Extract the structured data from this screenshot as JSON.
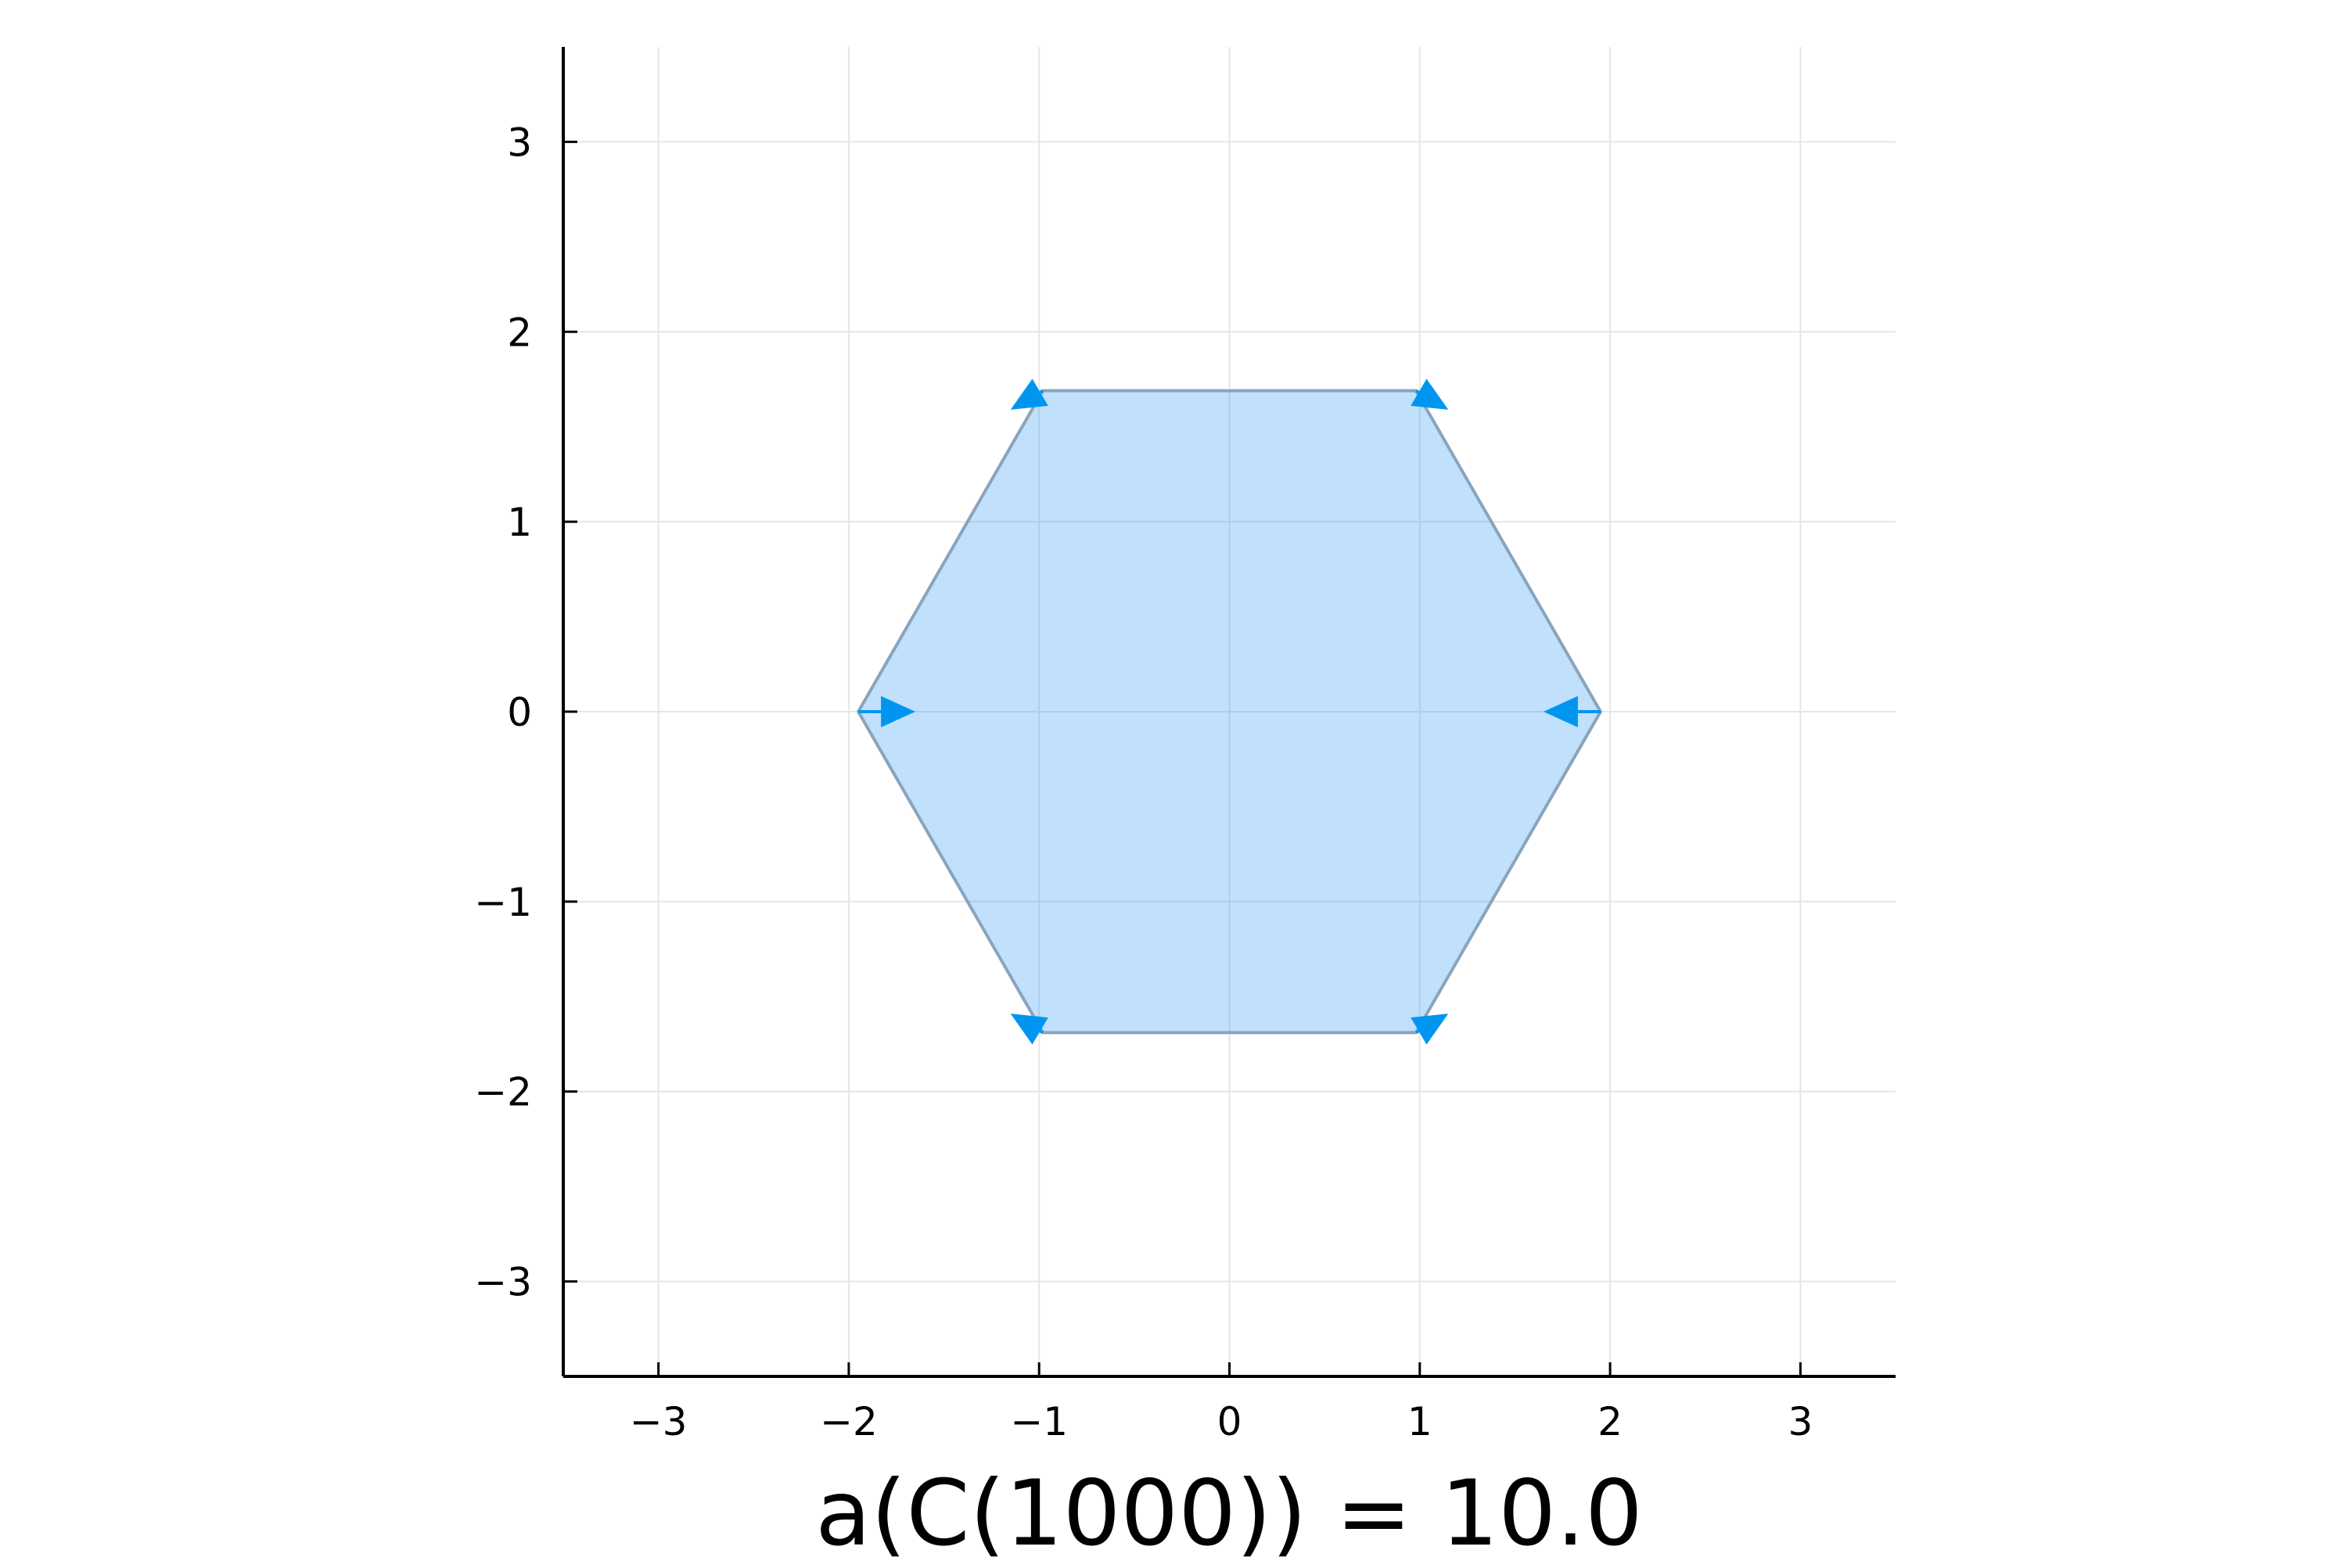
{
  "chart_data": {
    "type": "line",
    "title": "",
    "xlabel": "a(C(1000)) = 10.0",
    "ylabel": "",
    "xlim": [
      -3.5,
      3.5
    ],
    "ylim": [
      -3.5,
      3.5
    ],
    "xticks": [
      -3,
      -2,
      -1,
      0,
      1,
      2,
      3
    ],
    "yticks": [
      -3,
      -2,
      -1,
      0,
      1,
      2,
      3
    ],
    "xtick_labels": [
      "−3",
      "−2",
      "−1",
      "0",
      "1",
      "2",
      "3"
    ],
    "ytick_labels": [
      "−3",
      "−2",
      "−1",
      "0",
      "1",
      "2",
      "3"
    ],
    "grid": true,
    "legend": "none",
    "colors": {
      "fill": "#1E90F0",
      "edge": "#8aa4bc",
      "arrow": "#0096F0",
      "grid": "#e6e6e6",
      "axis": "#000000"
    },
    "series": [
      {
        "name": "hexagon",
        "kind": "filled-polygon",
        "x": [
          1.95,
          0.98,
          -0.98,
          -1.95,
          -0.98,
          0.98
        ],
        "y": [
          0,
          1.69,
          1.69,
          0,
          -1.69,
          -1.69
        ]
      },
      {
        "name": "arrows",
        "kind": "quiver",
        "points": [
          {
            "x": 1.95,
            "y": 0,
            "dx": -0.3,
            "dy": 0
          },
          {
            "x": 0.98,
            "y": 1.69,
            "dx": 0.17,
            "dy": -0.1
          },
          {
            "x": -0.98,
            "y": 1.69,
            "dx": -0.17,
            "dy": -0.1
          },
          {
            "x": -1.95,
            "y": 0,
            "dx": 0.3,
            "dy": 0
          },
          {
            "x": -0.98,
            "y": -1.69,
            "dx": -0.17,
            "dy": 0.1
          },
          {
            "x": 0.98,
            "y": -1.69,
            "dx": 0.17,
            "dy": 0.1
          }
        ]
      }
    ]
  }
}
